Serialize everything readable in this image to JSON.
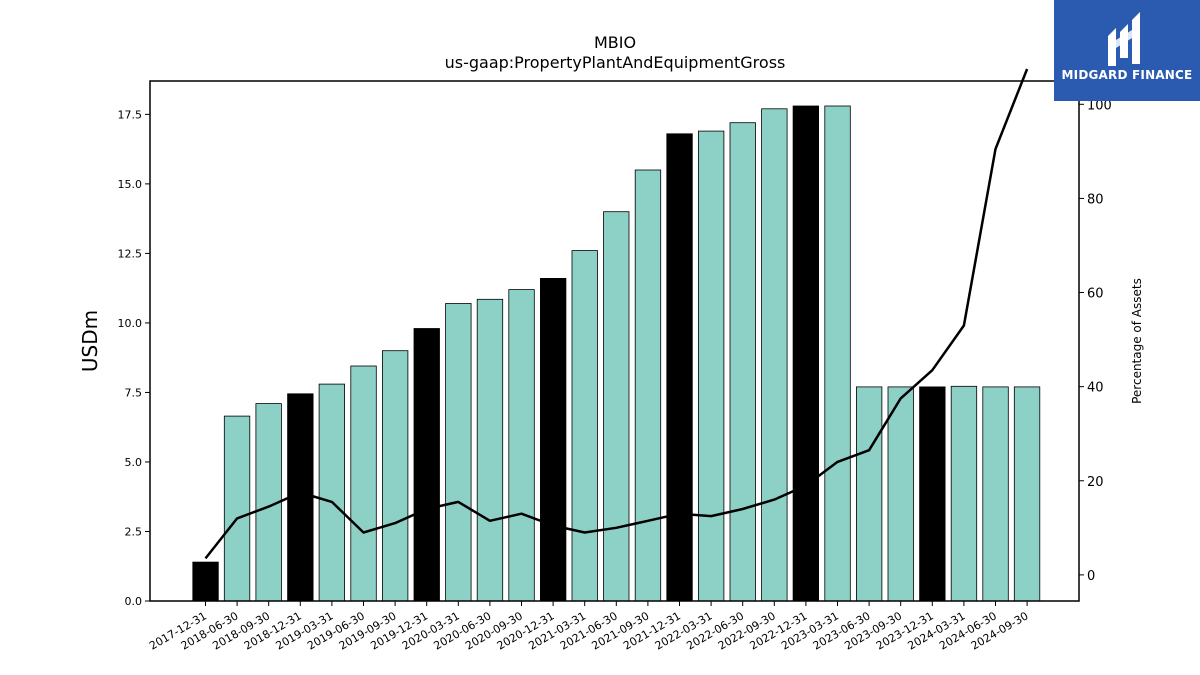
{
  "chart_data": {
    "type": "bar",
    "title": "MBIO",
    "subtitle": "us-gaap:PropertyPlantAndEquipmentGross",
    "ylabel": "USDm",
    "y2label": "Percentage of Assets",
    "ylim": [
      0,
      18.7
    ],
    "y2lim": [
      -3,
      107.5
    ],
    "yticks": [
      "0.0",
      "2.5",
      "5.0",
      "7.5",
      "10.0",
      "12.5",
      "15.0",
      "17.5"
    ],
    "y2ticks": [
      "0",
      "20",
      "40",
      "60",
      "80",
      "100"
    ],
    "categories": [
      "2017-12-31",
      "2018-06-30",
      "2018-09-30",
      "2018-12-31",
      "2019-03-31",
      "2019-06-30",
      "2019-09-30",
      "2019-12-31",
      "2020-03-31",
      "2020-06-30",
      "2020-09-30",
      "2020-12-31",
      "2021-03-31",
      "2021-06-30",
      "2021-09-30",
      "2021-12-31",
      "2022-03-31",
      "2022-06-30",
      "2022-09-30",
      "2022-12-31",
      "2023-03-31",
      "2023-06-30",
      "2023-09-30",
      "2023-12-31",
      "2024-03-31",
      "2024-06-30",
      "2024-09-30"
    ],
    "series": [
      {
        "type": "bar",
        "values": [
          1.4,
          6.65,
          7.1,
          7.45,
          7.8,
          8.45,
          9.0,
          9.8,
          10.7,
          10.85,
          11.2,
          11.6,
          12.6,
          14.0,
          15.5,
          16.8,
          16.9,
          17.2,
          17.7,
          17.8,
          17.8,
          7.7,
          7.7,
          7.7,
          7.72,
          7.7,
          7.7
        ],
        "annual": [
          true,
          false,
          false,
          true,
          false,
          false,
          false,
          true,
          false,
          false,
          false,
          true,
          false,
          false,
          false,
          true,
          false,
          false,
          false,
          true,
          false,
          false,
          false,
          true,
          false,
          false,
          false
        ]
      },
      {
        "type": "line",
        "axis": "right",
        "values": [
          3.5,
          12.0,
          14.5,
          17.5,
          15.5,
          9.0,
          11.0,
          14.0,
          15.5,
          11.5,
          13.0,
          10.5,
          9.0,
          10.0,
          11.5,
          13.0,
          12.5,
          14.0,
          16.0,
          19.0,
          24.0,
          26.5,
          37.5,
          43.5,
          53.0,
          90.5,
          107.5
        ]
      }
    ],
    "colors": {
      "annual_bar": "#000000",
      "quarter_bar": "#8dd1c6",
      "line": "#000000"
    }
  },
  "logo": {
    "text": "MIDGARD FINANCE",
    "background": "#2b5bb0"
  }
}
